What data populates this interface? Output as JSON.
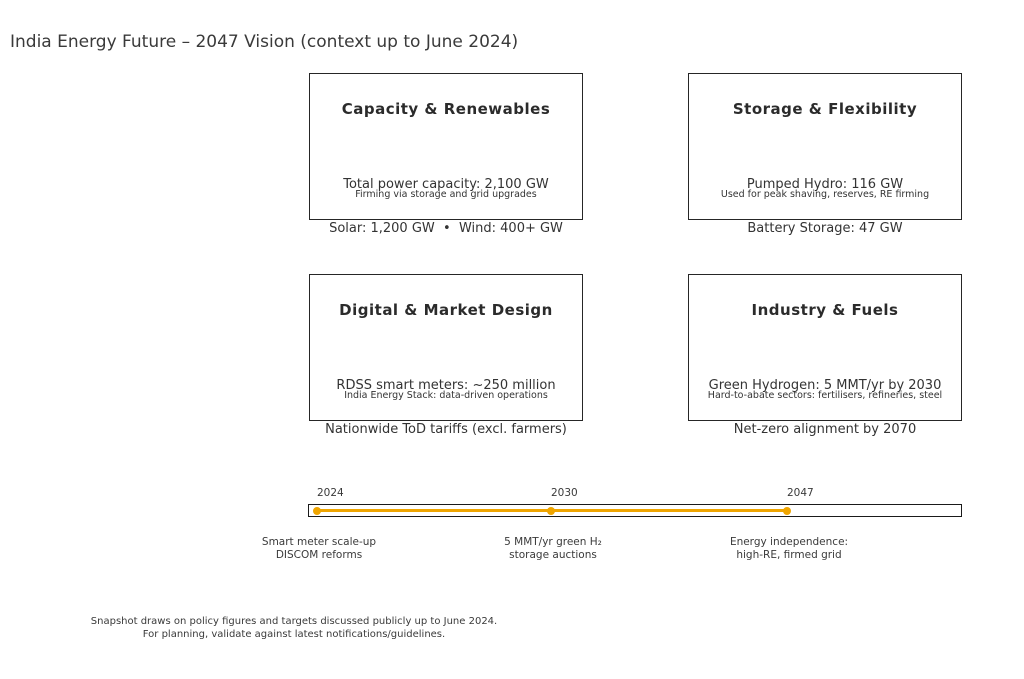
{
  "title": "India Energy Future – 2047 Vision (context up to June 2024)",
  "colors": {
    "accent": "#EFA500",
    "card_border": "#262626",
    "text": "#333333"
  },
  "cards": [
    {
      "title": "Capacity & Renewables",
      "line1": "Total power capacity: 2,100 GW",
      "line2": "Solar: 1,200 GW  •  Wind: 400+ GW",
      "footnote": "Firming via storage and grid upgrades"
    },
    {
      "title": "Storage & Flexibility",
      "line1": "Pumped Hydro: 116 GW",
      "line2": "Battery Storage: 47 GW",
      "footnote": "Used for peak shaving, reserves, RE firming"
    },
    {
      "title": "Digital & Market Design",
      "line1": "RDSS smart meters: ~250 million",
      "line2": "Nationwide ToD tariffs (excl. farmers)",
      "footnote": "India Energy Stack: data-driven operations"
    },
    {
      "title": "Industry & Fuels",
      "line1": "Green Hydrogen: 5 MMT/yr by 2030",
      "line2": "Net-zero alignment by 2070",
      "footnote": "Hard-to-abate sectors: fertilisers, refineries, steel"
    }
  ],
  "timeline": {
    "milestones": [
      {
        "year": "2024",
        "caption1": "Smart meter scale-up",
        "caption2": "DISCOM reforms"
      },
      {
        "year": "2030",
        "caption1": "5 MMT/yr green H₂",
        "caption2": "storage auctions"
      },
      {
        "year": "2047",
        "caption1": "Energy independence:",
        "caption2": "high-RE, firmed grid"
      }
    ]
  },
  "footnote": {
    "line1": "Snapshot draws on policy figures and targets discussed publicly up to June 2024.",
    "line2": "For planning, validate against latest notifications/guidelines."
  }
}
